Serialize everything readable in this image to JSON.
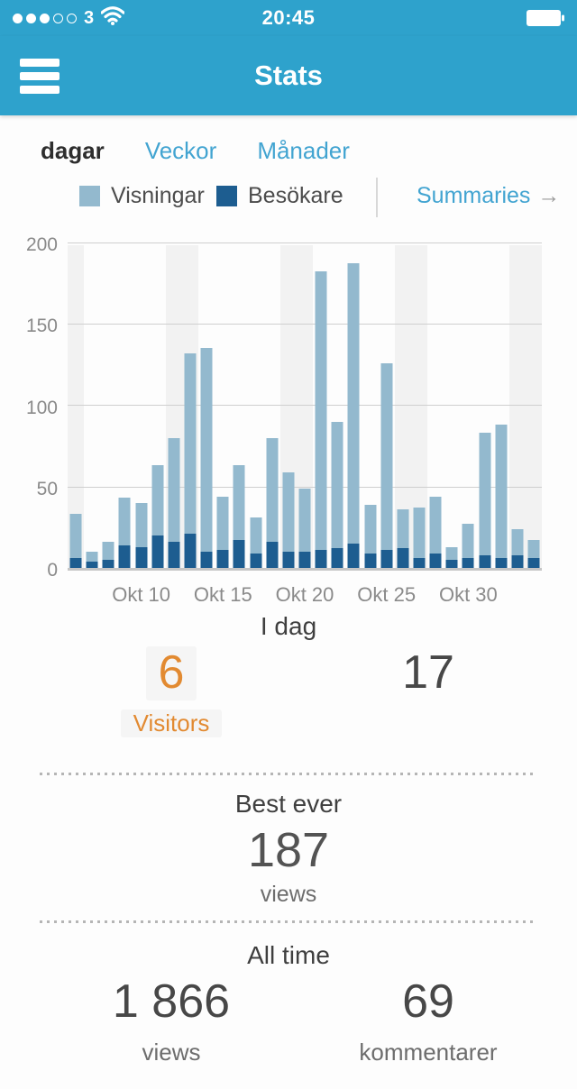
{
  "status_bar": {
    "carrier": "3",
    "time": "20:45",
    "signal_dots_filled": 3,
    "signal_dots_total": 5
  },
  "header": {
    "title": "Stats"
  },
  "tabs": [
    {
      "label": "dagar",
      "active": true
    },
    {
      "label": "Veckor",
      "active": false
    },
    {
      "label": "Månader",
      "active": false
    }
  ],
  "legend": {
    "views_label": "Visningar",
    "visitors_label": "Besökare",
    "summaries_label": "Summaries",
    "summaries_arrow": "→"
  },
  "chart_data": {
    "type": "bar",
    "title": "Daily views and visitors (dagar)",
    "ylim": [
      0,
      200
    ],
    "yticks": [
      0,
      50,
      100,
      150,
      200
    ],
    "grid": true,
    "tick_labels": [
      {
        "index": 4,
        "label": "Okt 10"
      },
      {
        "index": 9,
        "label": "Okt 15"
      },
      {
        "index": 14,
        "label": "Okt 20"
      },
      {
        "index": 19,
        "label": "Okt 25"
      },
      {
        "index": 24,
        "label": "Okt 30"
      }
    ],
    "weekend_band_indices": [
      0,
      6,
      7,
      13,
      14,
      20,
      21,
      27,
      28
    ],
    "series": [
      {
        "name": "Visningar",
        "color": "#93b9ce",
        "values": [
          33,
          10,
          16,
          43,
          40,
          63,
          80,
          132,
          135,
          44,
          63,
          31,
          80,
          59,
          49,
          182,
          90,
          187,
          39,
          126,
          36,
          37,
          44,
          13,
          27,
          83,
          88,
          24,
          17
        ]
      },
      {
        "name": "Besökare",
        "color": "#1d5d90",
        "values": [
          6,
          4,
          5,
          14,
          13,
          20,
          16,
          21,
          10,
          11,
          17,
          9,
          16,
          10,
          10,
          11,
          12,
          15,
          9,
          11,
          12,
          6,
          9,
          5,
          6,
          8,
          6,
          8,
          6
        ]
      }
    ]
  },
  "today": {
    "heading": "I dag",
    "visitors_value": "6",
    "visitors_label": "Visitors",
    "views_value": "17"
  },
  "best_ever": {
    "heading": "Best ever",
    "value": "187",
    "label": "views"
  },
  "all_time": {
    "heading": "All time",
    "views_value": "1 866",
    "views_label": "views",
    "comments_value": "69",
    "comments_label": "kommentarer"
  },
  "colors": {
    "header_blue": "#2ea2cc",
    "link_blue": "#42a4d1",
    "views_bar": "#93b9ce",
    "visitors_bar": "#1d5d90",
    "accent_orange": "#e28a31",
    "weekend_band": "#f2f2f2"
  }
}
